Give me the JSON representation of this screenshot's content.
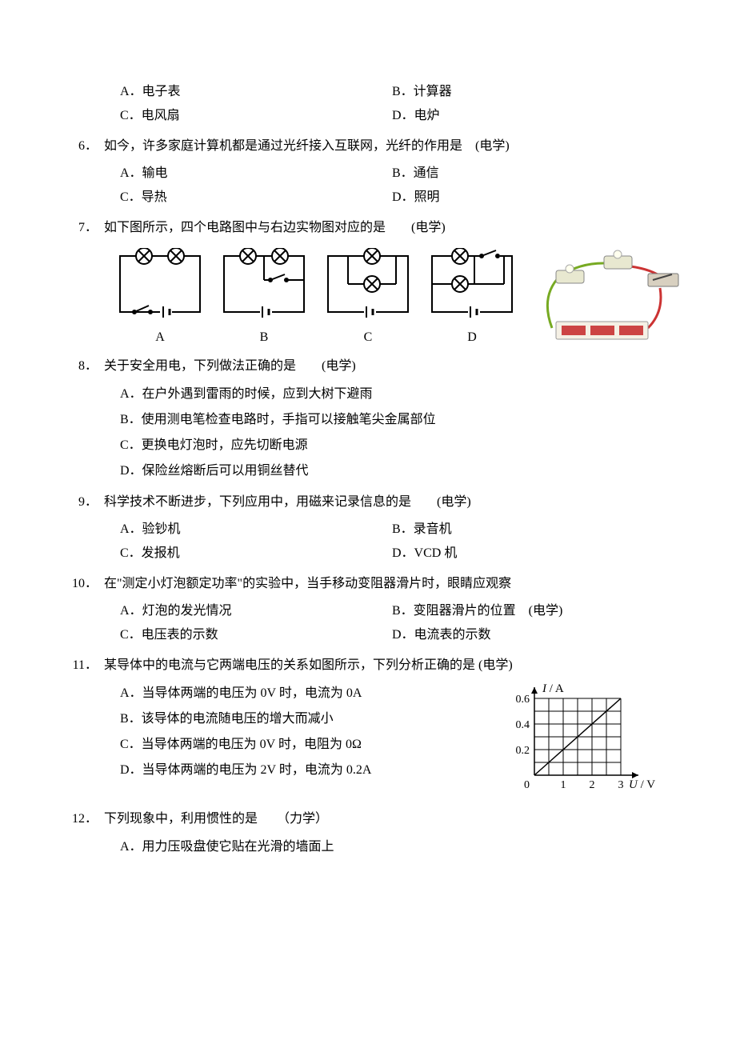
{
  "colors": {
    "text": "#000000",
    "background": "#ffffff",
    "stroke": "#000000",
    "grid": "#000000"
  },
  "q5_partial": {
    "opts": {
      "A": "A．电子表",
      "B": "B．计算器",
      "C": "C．电风扇",
      "D": "D．电炉"
    }
  },
  "q6": {
    "num": "6．",
    "stem": "如今，许多家庭计算机都是通过光纤接入互联网，光纤的作用是　(电学)",
    "opts": {
      "A": "A．输电",
      "B": "B．通信",
      "C": "C．导热",
      "D": "D．照明"
    }
  },
  "q7": {
    "num": "7．",
    "stem": "如下图所示，四个电路图中与右边实物图对应的是　　(电学)",
    "labels": {
      "A": "A",
      "B": "B",
      "C": "C",
      "D": "D"
    }
  },
  "q8": {
    "num": "8．",
    "stem": "关于安全用电，下列做法正确的是　　(电学)",
    "opts": {
      "A": "A．在户外遇到雷雨的时候，应到大树下避雨",
      "B": "B．使用测电笔检查电路时，手指可以接触笔尖金属部位",
      "C": "C．更换电灯泡时，应先切断电源",
      "D": "D．保险丝熔断后可以用铜丝替代"
    }
  },
  "q9": {
    "num": "9．",
    "stem": "科学技术不断进步，下列应用中，用磁来记录信息的是　　(电学)",
    "opts": {
      "A": "A．验钞机",
      "B": "B．录音机",
      "C": "C．发报机",
      "D": "D．VCD 机"
    }
  },
  "q10": {
    "num": "10．",
    "stem": "在\"测定小灯泡额定功率\"的实验中，当手移动变阻器滑片时，眼睛应观察",
    "opts": {
      "A": "A．灯泡的发光情况",
      "B": "B．变阻器滑片的位置　(电学)",
      "C": "C．电压表的示数",
      "D": "D．电流表的示数"
    }
  },
  "q11": {
    "num": "11．",
    "stem": "某导体中的电流与它两端电压的关系如图所示，下列分析正确的是  (电学)",
    "opts": {
      "A": "A．当导体两端的电压为 0V 时，电流为 0A",
      "B": "B．该导体的电流随电压的增大而减小",
      "C": "C．当导体两端的电压为 0V 时，电阻为 0Ω",
      "D": "D．当导体两端的电压为 2V 时，电流为 0.2A"
    },
    "chart": {
      "type": "line",
      "x_axis_label": "U / V",
      "y_axis_label": "I / A",
      "x_ticks": [
        "1",
        "2",
        "3"
      ],
      "y_ticks": [
        "0.2",
        "0.4",
        "0.6"
      ],
      "origin_label": "0",
      "xlim": [
        0,
        3
      ],
      "ylim": [
        0,
        0.6
      ],
      "x_grid_divs": 6,
      "y_grid_divs": 6,
      "line_points": [
        [
          0,
          0
        ],
        [
          3,
          0.6
        ]
      ],
      "stroke_color": "#000000",
      "grid_color": "#000000",
      "line_width": 1.5,
      "font_size_ticks": 14,
      "font_size_axis": 15,
      "font_style_axis": "italic"
    }
  },
  "q12": {
    "num": "12．",
    "stem": "下列现象中，利用惯性的是　　（力学）",
    "opts": {
      "A": "A．用力压吸盘使它贴在光滑的墙面上"
    }
  }
}
